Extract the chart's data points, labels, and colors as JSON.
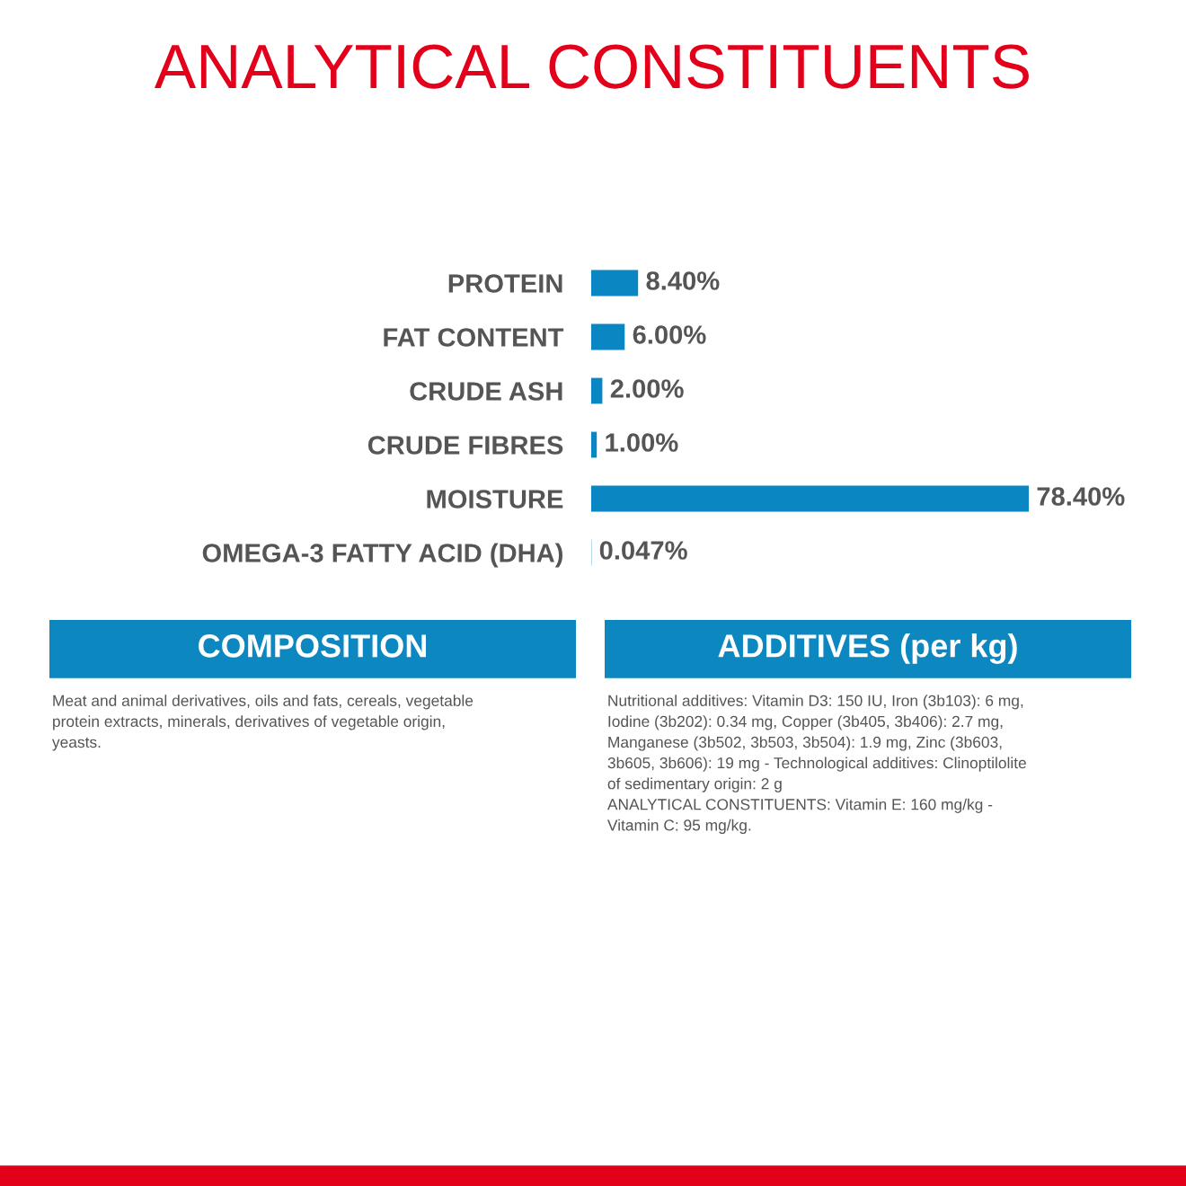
{
  "chart_data": [
    {
      "type": "bar",
      "orientation": "horizontal",
      "title": "ANALYTICAL CONSTITUENTS",
      "categories": [
        "PROTEIN",
        "FAT CONTENT",
        "CRUDE ASH",
        "CRUDE FIBRES",
        "MOISTURE",
        "OMEGA-3 FATTY ACID (DHA)"
      ],
      "values": [
        8.4,
        6.0,
        2.0,
        1.0,
        78.4,
        0.047
      ],
      "value_labels": [
        "8.40%",
        "6.00%",
        "2.00%",
        "1.00%",
        "78.40%",
        "0.047%"
      ],
      "color": "#0a86c2",
      "tick_labels": "y",
      "grid": false,
      "legend": false
    },
    {
      "type": "other",
      "title": "COMPOSITION",
      "annotations": [
        "Meat and animal derivatives, oils and fats, cereals, vegetable\nprotein extracts, minerals, derivatives of vegetable origin,\nyeasts."
      ]
    },
    {
      "type": "other",
      "title": "ADDITIVES (per kg)",
      "annotations": [
        "Nutritional additives: Vitamin D3: 150 IU, Iron (3b103): 6 mg,\nIodine (3b202): 0.34 mg, Copper (3b405, 3b406): 2.7 mg,\nManganese (3b502, 3b503, 3b504): 1.9 mg, Zinc (3b603,\n3b605, 3b606): 19 mg - Technological additives: Clinoptilolite\nof sedimentary origin: 2 g\nANALYTICAL CONSTITUENTS: Vitamin E: 160 mg/kg -\nVitamin C: 95 mg/kg."
      ]
    }
  ]
}
